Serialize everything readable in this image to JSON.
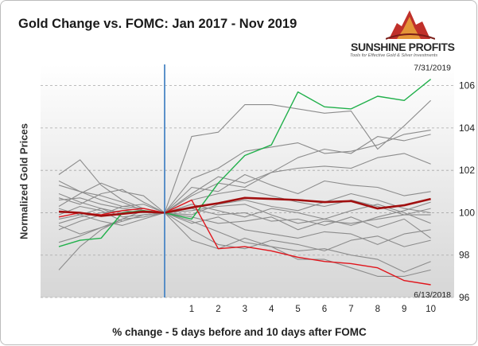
{
  "header": {
    "title": "Gold Change vs. FOMC: Jan 2017 - Nov 2019"
  },
  "logo": {
    "name": "SUNSHINE PROFITS",
    "tagline": "Tools for Effective Gold & Silver Investments",
    "mark_color": "#c0302a"
  },
  "colors": {
    "background_top": "#ffffff",
    "background_bottom": "#d6d6d6",
    "individual_series": "#8c8c8c",
    "highlight_high": "#21b04b",
    "highlight_low": "#e0141b",
    "average": "#a10f0f",
    "event_line": "#4a86c5",
    "grid": "#a8a8a8"
  },
  "chart_data": {
    "type": "line",
    "title": "Gold Change vs. FOMC: Jan 2017 - Nov 2019",
    "xlabel": "% change - 5 days before and 10 days after FOMC",
    "ylabel": "Normalized Gold Prices",
    "x": [
      -5,
      -4,
      -3,
      -2,
      -1,
      0,
      1,
      2,
      3,
      4,
      5,
      6,
      7,
      8,
      9,
      10
    ],
    "x_tick_labels": [
      "1",
      "2",
      "3",
      "4",
      "5",
      "6",
      "7",
      "8",
      "9",
      "10"
    ],
    "ylim": [
      96,
      107
    ],
    "y_ticks": [
      96,
      98,
      100,
      102,
      104,
      106
    ],
    "event_marker": "FOMC at x = 0",
    "y_grid": true,
    "series": [
      {
        "name": "7/31/2019",
        "role": "high",
        "values": [
          98.4,
          98.7,
          98.8,
          100.0,
          100.1,
          100.0,
          99.7,
          101.4,
          102.7,
          103.2,
          105.7,
          105.0,
          104.9,
          105.5,
          105.3,
          106.3
        ]
      },
      {
        "name": "6/13/2018",
        "role": "low",
        "values": [
          99.8,
          100.0,
          99.9,
          100.1,
          100.2,
          100.0,
          100.6,
          98.3,
          98.4,
          98.2,
          97.9,
          97.7,
          97.6,
          97.4,
          96.8,
          96.6
        ]
      },
      {
        "role": "average",
        "values": [
          100.05,
          100.0,
          99.85,
          99.95,
          100.05,
          100.0,
          100.25,
          100.45,
          100.7,
          100.65,
          100.6,
          100.5,
          100.55,
          100.2,
          100.35,
          100.65
        ]
      },
      {
        "values": [
          99.4,
          99.0,
          99.3,
          99.6,
          99.9,
          100.0,
          103.6,
          103.8,
          105.1,
          105.1,
          104.9,
          104.7,
          104.8,
          103.0,
          104.1,
          105.3
        ]
      },
      {
        "values": [
          101.8,
          102.5,
          101.3,
          100.6,
          100.2,
          100.0,
          101.6,
          102.1,
          102.9,
          103.1,
          103.3,
          102.8,
          102.9,
          103.2,
          103.7,
          103.9
        ]
      },
      {
        "values": [
          100.7,
          100.4,
          100.9,
          101.1,
          100.5,
          100.0,
          100.9,
          101.7,
          101.4,
          101.9,
          102.6,
          103.0,
          102.8,
          103.6,
          103.4,
          103.7
        ]
      },
      {
        "values": [
          101.3,
          101.0,
          100.8,
          100.5,
          100.1,
          100.0,
          100.8,
          101.4,
          101.2,
          101.9,
          102.1,
          102.2,
          102.1,
          102.6,
          102.8,
          102.3
        ]
      },
      {
        "values": [
          101.5,
          101.0,
          100.6,
          100.3,
          100.2,
          100.0,
          101.2,
          101.0,
          101.8,
          101.3,
          100.9,
          101.5,
          101.3,
          101.2,
          100.8,
          101.0
        ]
      },
      {
        "values": [
          100.3,
          100.9,
          101.4,
          101.0,
          100.8,
          100.0,
          100.6,
          100.9,
          101.1,
          100.8,
          100.5,
          100.3,
          100.6,
          100.3,
          99.9,
          100.2
        ]
      },
      {
        "values": [
          99.2,
          99.6,
          99.9,
          100.3,
          100.4,
          100.0,
          100.1,
          100.3,
          100.4,
          99.9,
          99.5,
          99.7,
          99.4,
          99.8,
          100.1,
          100.5
        ]
      },
      {
        "values": [
          99.7,
          99.9,
          100.2,
          99.8,
          99.9,
          100.0,
          99.8,
          99.5,
          99.6,
          99.8,
          99.2,
          99.6,
          99.5,
          99.7,
          99.9,
          99.9
        ]
      },
      {
        "values": [
          100.2,
          99.9,
          99.6,
          99.4,
          99.7,
          100.0,
          99.5,
          99.8,
          99.2,
          99.0,
          98.8,
          99.1,
          99.0,
          98.5,
          99.0,
          99.2
        ]
      },
      {
        "values": [
          97.3,
          98.4,
          99.2,
          99.7,
          100.1,
          100.0,
          99.6,
          99.1,
          98.6,
          98.4,
          98.2,
          98.3,
          98.0,
          97.8,
          97.2,
          97.7
        ]
      },
      {
        "values": [
          98.6,
          98.9,
          99.3,
          99.7,
          99.8,
          100.0,
          98.7,
          98.3,
          98.8,
          98.4,
          97.8,
          97.8,
          97.4,
          97.0,
          97.0,
          97.3
        ]
      },
      {
        "values": [
          99.9,
          100.3,
          100.1,
          99.6,
          99.9,
          100.0,
          99.2,
          98.5,
          98.3,
          98.7,
          98.5,
          98.2,
          98.7,
          98.9,
          98.4,
          98.7
        ]
      },
      {
        "values": [
          100.9,
          100.5,
          100.2,
          100.0,
          100.1,
          100.0,
          100.4,
          100.1,
          99.8,
          100.2,
          100.0,
          99.7,
          100.1,
          100.4,
          100.0,
          99.5
        ]
      },
      {
        "values": [
          99.5,
          99.8,
          100.0,
          100.1,
          100.0,
          100.0,
          99.9,
          100.4,
          100.6,
          100.3,
          100.1,
          100.5,
          100.9,
          100.6,
          100.2,
          100.0
        ]
      },
      {
        "values": [
          100.6,
          100.7,
          100.4,
          100.2,
          100.1,
          100.0,
          100.2,
          99.9,
          100.0,
          99.6,
          99.7,
          99.4,
          99.8,
          99.3,
          99.7,
          98.8
        ]
      }
    ]
  }
}
